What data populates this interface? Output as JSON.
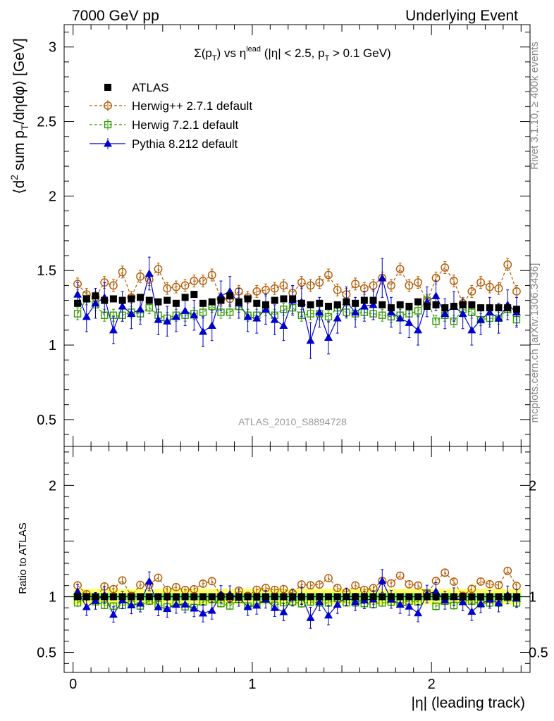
{
  "header": {
    "left": "7000 GeV pp",
    "right": "Underlying Event"
  },
  "side_labels": {
    "rivet": "Rivet 3.1.10, ≥ 400k events",
    "mcplots": "mcplots.cern.ch [arXiv:1306.3436]"
  },
  "plot_title": {
    "sigma": "Σ(p",
    "sub_t": "T",
    "vs": ") vs η",
    "lead": "lead",
    "cut1": " (|η| < 2.5, p",
    "cut2": " > 0.1 GeV)"
  },
  "analysis_label": "ATLAS_2010_S8894728",
  "y_axis_label": {
    "p1": "⟨d",
    "sup2": "2",
    "p2": " sum p",
    "subT": "T",
    "p3": "/dηdφ⟩ [GeV]"
  },
  "ratio_axis_label": "Ratio to ATLAS",
  "x_axis_label": "|η| (leading track)",
  "colors": {
    "atlas": "#000000",
    "herwigpp": "#b35900",
    "herwig7": "#339900",
    "pythia": "#0000cc",
    "band_yellow": "#ffff66",
    "band_green": "#66ff66",
    "grey": "#888888"
  },
  "chart_data": {
    "type": "scatter",
    "x": [
      0.025,
      0.075,
      0.125,
      0.175,
      0.225,
      0.275,
      0.325,
      0.375,
      0.425,
      0.475,
      0.525,
      0.575,
      0.625,
      0.675,
      0.725,
      0.775,
      0.825,
      0.875,
      0.925,
      0.975,
      1.025,
      1.075,
      1.125,
      1.175,
      1.225,
      1.275,
      1.325,
      1.375,
      1.425,
      1.475,
      1.525,
      1.575,
      1.625,
      1.675,
      1.725,
      1.775,
      1.825,
      1.875,
      1.925,
      1.975,
      2.025,
      2.075,
      2.125,
      2.175,
      2.225,
      2.275,
      2.325,
      2.375,
      2.425,
      2.475
    ],
    "x_error": 0.025,
    "xlabel": "|η| (leading track)",
    "ylabel": "⟨d2 sum pT/dηdφ⟩ [GeV]",
    "xlim": [
      -0.05,
      2.55
    ],
    "main_ylim": [
      0.32,
      3.15
    ],
    "main_yticks": [
      0.5,
      1,
      1.5,
      2,
      2.5,
      3
    ],
    "main_yticklabels": [
      "0.5",
      "1",
      "1.5",
      "2",
      "2.5",
      "3"
    ],
    "ratio_ylim": [
      0.32,
      2.35
    ],
    "ratio_yticks": [
      0.5,
      1,
      2
    ],
    "ratio_yticklabels": [
      "0.5",
      "1",
      "2"
    ],
    "xticks": [
      0,
      1,
      2
    ],
    "xticklabels": [
      "0",
      "1",
      "2"
    ],
    "ratio_band_yellow": [
      0.93,
      1.07
    ],
    "ratio_band_green": [
      0.97,
      1.03
    ],
    "series": [
      {
        "name": "ATLAS",
        "marker": "square-filled",
        "line": "none",
        "values": [
          1.28,
          1.31,
          1.33,
          1.3,
          1.31,
          1.3,
          1.31,
          1.32,
          1.3,
          1.29,
          1.3,
          1.28,
          1.32,
          1.34,
          1.28,
          1.29,
          1.3,
          1.33,
          1.29,
          1.31,
          1.28,
          1.27,
          1.3,
          1.31,
          1.31,
          1.28,
          1.27,
          1.28,
          1.26,
          1.27,
          1.29,
          1.28,
          1.3,
          1.3,
          1.27,
          1.25,
          1.27,
          1.26,
          1.29,
          1.26,
          1.27,
          1.25,
          1.26,
          1.27,
          1.27,
          1.25,
          1.25,
          1.25,
          1.25,
          1.24
        ],
        "errors": [
          0.02,
          0.02,
          0.02,
          0.02,
          0.02,
          0.02,
          0.02,
          0.02,
          0.02,
          0.02,
          0.02,
          0.02,
          0.02,
          0.02,
          0.02,
          0.02,
          0.02,
          0.02,
          0.02,
          0.02,
          0.02,
          0.02,
          0.02,
          0.02,
          0.02,
          0.02,
          0.02,
          0.02,
          0.02,
          0.02,
          0.02,
          0.02,
          0.02,
          0.02,
          0.02,
          0.02,
          0.02,
          0.02,
          0.02,
          0.02,
          0.02,
          0.02,
          0.02,
          0.02,
          0.02,
          0.02,
          0.02,
          0.02,
          0.02,
          0.02
        ]
      },
      {
        "name": "Herwig++ 2.7.1 default",
        "marker": "circle-open",
        "line": "dashed",
        "values": [
          1.41,
          1.34,
          1.32,
          1.42,
          1.4,
          1.49,
          1.32,
          1.46,
          1.44,
          1.51,
          1.38,
          1.39,
          1.4,
          1.43,
          1.43,
          1.47,
          1.31,
          1.31,
          1.36,
          1.32,
          1.36,
          1.37,
          1.38,
          1.4,
          1.35,
          1.42,
          1.4,
          1.42,
          1.47,
          1.37,
          1.34,
          1.41,
          1.38,
          1.4,
          1.45,
          1.4,
          1.51,
          1.4,
          1.42,
          1.29,
          1.45,
          1.52,
          1.43,
          1.28,
          1.36,
          1.42,
          1.39,
          1.38,
          1.54,
          1.36
        ],
        "errors": [
          0.04,
          0.04,
          0.04,
          0.04,
          0.04,
          0.04,
          0.04,
          0.04,
          0.04,
          0.04,
          0.04,
          0.04,
          0.04,
          0.04,
          0.04,
          0.04,
          0.04,
          0.04,
          0.04,
          0.04,
          0.04,
          0.04,
          0.04,
          0.04,
          0.04,
          0.04,
          0.04,
          0.04,
          0.04,
          0.04,
          0.04,
          0.04,
          0.04,
          0.04,
          0.04,
          0.04,
          0.04,
          0.04,
          0.04,
          0.04,
          0.04,
          0.04,
          0.04,
          0.04,
          0.04,
          0.04,
          0.04,
          0.04,
          0.04,
          0.04
        ]
      },
      {
        "name": "Herwig 7.2.1 default",
        "marker": "square-open",
        "line": "dashed",
        "values": [
          1.21,
          1.31,
          1.27,
          1.2,
          1.2,
          1.2,
          1.22,
          1.21,
          1.25,
          1.2,
          1.18,
          1.2,
          1.2,
          1.21,
          1.22,
          1.26,
          1.22,
          1.22,
          1.26,
          1.2,
          1.2,
          1.24,
          1.2,
          1.24,
          1.25,
          1.2,
          1.21,
          1.21,
          1.19,
          1.25,
          1.22,
          1.21,
          1.22,
          1.21,
          1.2,
          1.19,
          1.2,
          1.21,
          1.23,
          1.3,
          1.16,
          1.2,
          1.16,
          1.24,
          1.22,
          1.17,
          1.18,
          1.18,
          1.24,
          1.17
        ],
        "errors": [
          0.04,
          0.04,
          0.04,
          0.04,
          0.04,
          0.04,
          0.04,
          0.04,
          0.04,
          0.04,
          0.04,
          0.04,
          0.04,
          0.04,
          0.04,
          0.04,
          0.04,
          0.04,
          0.04,
          0.04,
          0.04,
          0.04,
          0.04,
          0.04,
          0.04,
          0.04,
          0.04,
          0.04,
          0.04,
          0.04,
          0.04,
          0.04,
          0.04,
          0.04,
          0.04,
          0.04,
          0.04,
          0.04,
          0.04,
          0.04,
          0.04,
          0.04,
          0.04,
          0.04,
          0.04,
          0.04,
          0.04,
          0.04,
          0.04,
          0.04
        ]
      },
      {
        "name": "Pythia 8.212 default",
        "marker": "triangle-filled",
        "line": "solid",
        "values": [
          1.34,
          1.19,
          1.28,
          1.32,
          1.1,
          1.26,
          1.21,
          1.24,
          1.48,
          1.17,
          1.16,
          1.19,
          1.23,
          1.2,
          1.09,
          1.13,
          1.33,
          1.36,
          1.28,
          1.19,
          1.18,
          1.24,
          1.17,
          1.13,
          1.3,
          1.29,
          1.03,
          1.22,
          1.05,
          1.18,
          1.29,
          1.22,
          1.26,
          1.27,
          1.45,
          1.22,
          1.18,
          1.15,
          1.1,
          1.29,
          1.33,
          1.21,
          1.26,
          1.21,
          1.1,
          1.17,
          1.22,
          1.18,
          1.27,
          1.22
        ],
        "errors": [
          0.08,
          0.1,
          0.1,
          0.1,
          0.09,
          0.1,
          0.1,
          0.1,
          0.11,
          0.1,
          0.1,
          0.1,
          0.1,
          0.1,
          0.1,
          0.1,
          0.1,
          0.1,
          0.1,
          0.1,
          0.1,
          0.1,
          0.1,
          0.1,
          0.1,
          0.1,
          0.12,
          0.1,
          0.11,
          0.1,
          0.1,
          0.1,
          0.1,
          0.1,
          0.13,
          0.1,
          0.1,
          0.1,
          0.1,
          0.1,
          0.1,
          0.1,
          0.1,
          0.1,
          0.1,
          0.1,
          0.1,
          0.1,
          0.1,
          0.1
        ]
      }
    ]
  }
}
